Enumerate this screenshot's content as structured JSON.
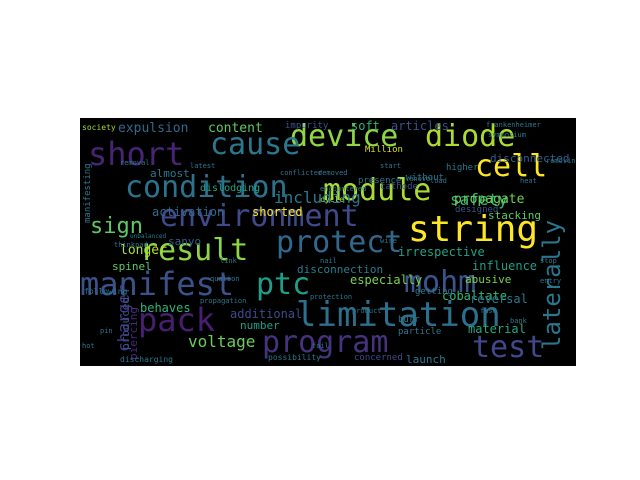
{
  "wordcloud": {
    "background": "#000000",
    "words": [
      {
        "text": "device",
        "color": "#8fd744"
      },
      {
        "text": "diode",
        "color": "#addc30"
      },
      {
        "text": "cause",
        "color": "#2a778e"
      },
      {
        "text": "short",
        "color": "#482475"
      },
      {
        "text": "cell",
        "color": "#fde725"
      },
      {
        "text": "condition",
        "color": "#2c718e"
      },
      {
        "text": "module",
        "color": "#a8db34"
      },
      {
        "text": "environment",
        "color": "#3e4a89"
      },
      {
        "text": "string",
        "color": "#fde725"
      },
      {
        "text": "protect",
        "color": "#31688e"
      },
      {
        "text": "result",
        "color": "#8bd646"
      },
      {
        "text": "manifest",
        "color": "#3b528b"
      },
      {
        "text": "ptc",
        "color": "#1f9e89"
      },
      {
        "text": "mohm",
        "color": "#39558c"
      },
      {
        "text": "pack",
        "color": "#481f70"
      },
      {
        "text": "limitation",
        "color": "#2d708e"
      },
      {
        "text": "program",
        "color": "#46337e"
      },
      {
        "text": "test",
        "color": "#3f4889"
      },
      {
        "text": "laterally",
        "color": "#2a768e"
      },
      {
        "text": "voltage",
        "color": "#6ccd5a"
      },
      {
        "text": "sign",
        "color": "#5ec962"
      },
      {
        "text": "including",
        "color": "#2a788e"
      },
      {
        "text": "safety",
        "color": "#35b779"
      },
      {
        "text": "expulsion",
        "color": "#31688e"
      },
      {
        "text": "content",
        "color": "#5ec962"
      },
      {
        "text": "soft",
        "color": "#2db27d"
      },
      {
        "text": "articles",
        "color": "#3b528b"
      },
      {
        "text": "propagate",
        "color": "#6ece58"
      },
      {
        "text": "activation",
        "color": "#31688e"
      },
      {
        "text": "shorted",
        "color": "#fde725"
      },
      {
        "text": "stacking",
        "color": "#5ec962"
      },
      {
        "text": "irrespective",
        "color": "#20a486"
      },
      {
        "text": "influence",
        "color": "#1f9e89"
      },
      {
        "text": "longer",
        "color": "#b5de2b"
      },
      {
        "text": "sanyo",
        "color": "#38598c"
      },
      {
        "text": "disconnection",
        "color": "#287c8e"
      },
      {
        "text": "especially",
        "color": "#7ad151"
      },
      {
        "text": "abusive",
        "color": "#7ad151"
      },
      {
        "text": "spinel",
        "color": "#5ec962"
      },
      {
        "text": "behaves",
        "color": "#2fb47c"
      },
      {
        "text": "cobaltate",
        "color": "#35b779"
      },
      {
        "text": "reversal",
        "color": "#2a788e"
      },
      {
        "text": "additional",
        "color": "#3e4a89"
      },
      {
        "text": "number",
        "color": "#1f9e89"
      },
      {
        "text": "material",
        "color": "#22a884"
      },
      {
        "text": "charger",
        "color": "#453882"
      },
      {
        "text": "produced",
        "color": "#3b528b"
      },
      {
        "text": "piercing",
        "color": "#482878"
      },
      {
        "text": "launch",
        "color": "#2a788e"
      },
      {
        "text": "almost",
        "color": "#2a788e"
      },
      {
        "text": "disconnected",
        "color": "#365c8d"
      },
      {
        "text": "dislodging",
        "color": "#20a486"
      },
      {
        "text": "impurity",
        "color": "#3b528b"
      },
      {
        "text": "Million",
        "color": "#d8e219"
      },
      {
        "text": "presence",
        "color": "#2a788e"
      },
      {
        "text": "designed",
        "color": "#3b528b"
      },
      {
        "text": "getting",
        "color": "#2a788e"
      },
      {
        "text": "cathode",
        "color": "#3b528b"
      },
      {
        "text": "particle",
        "color": "#2a788e"
      },
      {
        "text": "burr",
        "color": "#2a788e"
      },
      {
        "text": "concerned",
        "color": "#3e4a89"
      },
      {
        "text": "possibility",
        "color": "#2a788e"
      },
      {
        "text": "discharging",
        "color": "#2a788e"
      },
      {
        "text": "manifesting",
        "color": "#2a788e"
      },
      {
        "text": "society",
        "color": "#9fda3a"
      },
      {
        "text": "removal",
        "color": "#2a788e"
      },
      {
        "text": "unbalanced",
        "color": "#2a788e"
      },
      {
        "text": "thinkpad",
        "color": "#2a788e"
      },
      {
        "text": "without",
        "color": "#2a788e"
      },
      {
        "text": "higher",
        "color": "#2a788e"
      },
      {
        "text": "frankenheimer",
        "color": "#2a788e"
      },
      {
        "text": "symposium",
        "color": "#2a788e"
      },
      {
        "text": "cycle",
        "color": "#addc30"
      },
      {
        "text": "lenovo",
        "color": "#2a788e"
      },
      {
        "text": "qualion",
        "color": "#2a788e"
      },
      {
        "text": "propagation",
        "color": "#2a788e"
      },
      {
        "text": "protection",
        "color": "#2a788e"
      },
      {
        "text": "product",
        "color": "#2a788e"
      },
      {
        "text": "following",
        "color": "#2a788e"
      },
      {
        "text": "start",
        "color": "#2a788e"
      },
      {
        "text": "removing",
        "color": "#2a788e"
      },
      {
        "text": "conflicted",
        "color": "#2a788e"
      },
      {
        "text": "removed",
        "color": "#2a788e"
      },
      {
        "text": "encountered",
        "color": "#2a788e"
      },
      {
        "text": "latest",
        "color": "#2a788e"
      },
      {
        "text": "foil",
        "color": "#2a788e"
      },
      {
        "text": "fuse",
        "color": "#2a788e"
      },
      {
        "text": "stop",
        "color": "#2a788e"
      },
      {
        "text": "entry",
        "color": "#2a788e"
      },
      {
        "text": "bank",
        "color": "#2a788e"
      },
      {
        "text": "pin",
        "color": "#2a788e"
      },
      {
        "text": "hot",
        "color": "#2a788e"
      },
      {
        "text": "link",
        "color": "#2a788e"
      },
      {
        "text": "nail",
        "color": "#2a788e"
      },
      {
        "text": "wire",
        "color": "#2a788e"
      },
      {
        "text": "load",
        "color": "#2a788e"
      },
      {
        "text": "heat",
        "color": "#2a788e"
      }
    ]
  }
}
